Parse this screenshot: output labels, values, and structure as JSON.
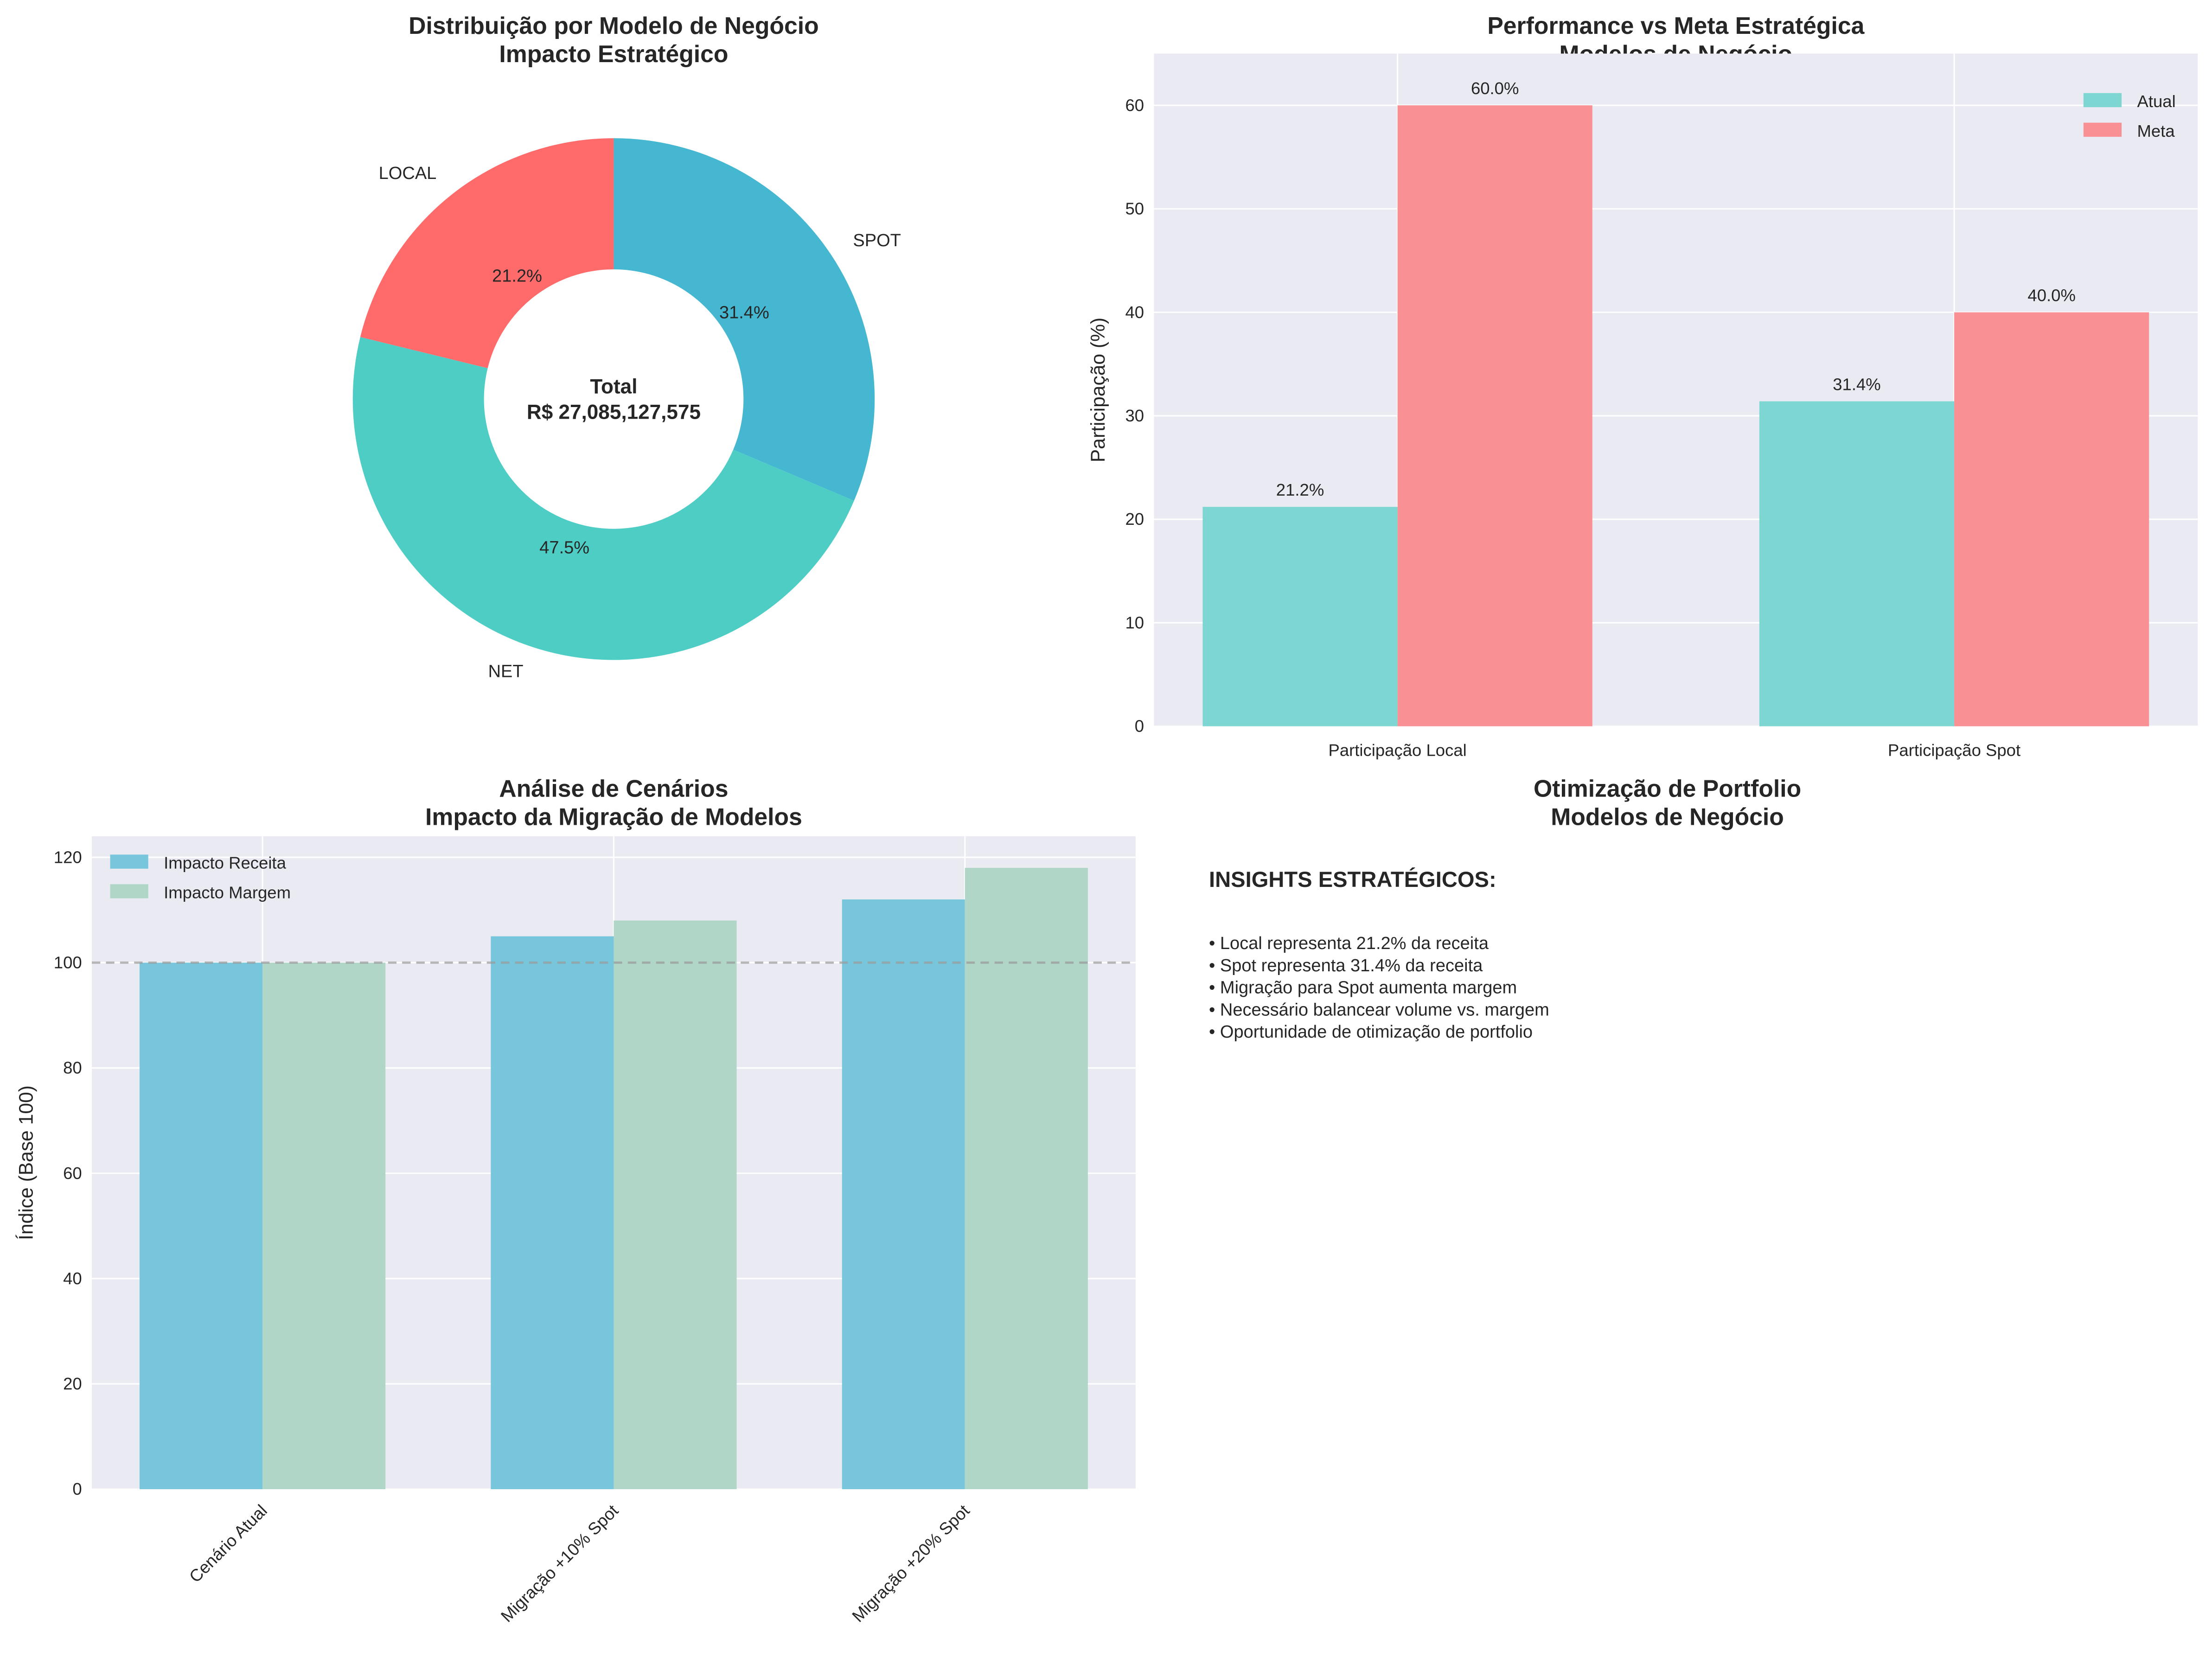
{
  "chart_data": [
    {
      "type": "pie",
      "title": "Distribuição por Modelo de Negócio\nImpacto Estratégico",
      "categories": [
        "LOCAL",
        "NET",
        "SPOT"
      ],
      "values": [
        21.2,
        47.5,
        31.4
      ],
      "value_labels": [
        "21.2%",
        "47.5%",
        "31.4%"
      ],
      "colors": [
        "#FF6B6B",
        "#4ECDC4",
        "#45B7D1"
      ],
      "donut": true,
      "center_label": [
        "Total",
        "R$ 27,085,127,575"
      ]
    },
    {
      "type": "bar",
      "title": "Performance vs Meta Estratégica\nModelos de Negócio",
      "categories": [
        "Participação Local",
        "Participação Spot"
      ],
      "series": [
        {
          "name": "Atual",
          "values": [
            21.2,
            31.4
          ],
          "labels": [
            "21.2%",
            "31.4%"
          ],
          "color": "#4ECDC4"
        },
        {
          "name": "Meta",
          "values": [
            60.0,
            40.0
          ],
          "labels": [
            "60.0%",
            "40.0%"
          ],
          "color": "#FF6B6B"
        }
      ],
      "xlabel": "",
      "ylabel": "Participação (%)",
      "ylim": [
        0,
        65
      ],
      "yticks": [
        0,
        10,
        20,
        30,
        40,
        50,
        60
      ],
      "grid": true,
      "legend": "top-right"
    },
    {
      "type": "bar",
      "title": "Análise de Cenários\nImpacto da Migração de Modelos",
      "categories": [
        "Cenário Atual",
        "Migração +10% Spot",
        "Migração +20% Spot"
      ],
      "series": [
        {
          "name": "Impacto Receita",
          "values": [
            100,
            105,
            112
          ],
          "color": "#45B7D1"
        },
        {
          "name": "Impacto Margem",
          "values": [
            100,
            108,
            118
          ],
          "color": "#96CEB4"
        }
      ],
      "reference_line": 100,
      "xlabel": "",
      "ylabel": "Índice (Base 100)",
      "ylim": [
        0,
        124
      ],
      "yticks": [
        0,
        20,
        40,
        60,
        80,
        100,
        120
      ],
      "grid": true,
      "legend": "top-left"
    }
  ],
  "text_panel": {
    "title": "Otimização de Portfolio\nModelos de Negócio",
    "heading": "INSIGHTS ESTRATÉGICOS:",
    "bullets": [
      "• Local representa 21.2% da receita",
      "• Spot representa 31.4% da receita",
      "• Migração para Spot aumenta margem",
      "• Necessário balancear volume vs. margem",
      "• Oportunidade de otimização de portfolio"
    ]
  }
}
